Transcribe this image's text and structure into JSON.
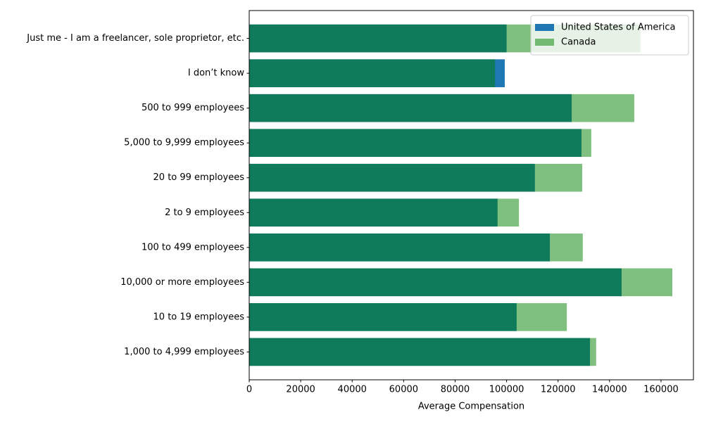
{
  "chart_data": {
    "type": "barh",
    "xlabel": "Average Compensation",
    "categories": [
      "1,000 to 4,999 employees",
      "10 to 19 employees",
      "10,000 or more employees",
      "100 to 499 employees",
      "2 to 9 employees",
      "20 to 99 employees",
      "5,000 to 9,999 employees",
      "500 to 999 employees",
      "I don’t know",
      "Just me - I am a freelancer, sole proprietor, etc."
    ],
    "series": [
      {
        "name": "United States of America",
        "color": "#1f77b4",
        "alpha": 1,
        "values": [
          132400,
          103900,
          144700,
          116800,
          96500,
          111000,
          129100,
          125300,
          99300,
          100000
        ]
      },
      {
        "name": "Canada",
        "color": "#008000",
        "alpha": 0.5,
        "values": [
          134800,
          123400,
          164400,
          129600,
          104800,
          129400,
          132900,
          149600,
          95500,
          152000
        ]
      }
    ],
    "xlim": [
      0,
      172600
    ],
    "xticks": [
      0,
      20000,
      40000,
      60000,
      80000,
      100000,
      120000,
      140000,
      160000
    ],
    "legend": "upper right"
  }
}
